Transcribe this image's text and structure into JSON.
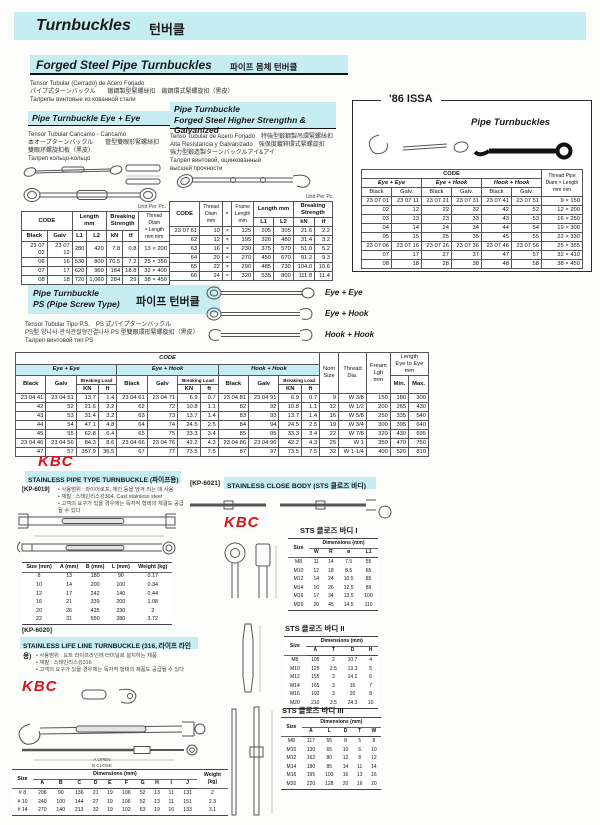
{
  "page": {
    "title_en": "Turnbuckles",
    "title_ko": "턴버클"
  },
  "forged": {
    "title_en": "Forged Steel Pipe Turnbuckles",
    "title_ko": "파이프 몸체 턴버클",
    "desc": [
      "Tensor Tubular (Cerrado) de Acero Forjado",
      "パイプ式ターンバックル　　鍛鋼製型緊螺絲扣　鍛鋼環式緊螺旋扣（黑皮）",
      "Талрепы винтовые из кованной стали"
    ]
  },
  "eye_eye": {
    "title": "Pipe Turnbuckle  Eye + Eye",
    "desc": [
      "Tensor Tubular Cancamo - Cancamo",
      "本オープターンバックル　　管型雙眼形緊螺絲扣",
      "雙眼环螺旋扣板（黑皮）",
      "Талреп кольцо-кольцо"
    ],
    "unit": "Unit Per Pc.",
    "table": {
      "h_code": "CODE",
      "h_black": "Black",
      "h_galv": "Galv",
      "h_length": "Length\nmm",
      "h_l1": "L1",
      "h_l2": "L2",
      "h_break": "Breaking\nStrength",
      "h_kn": "kN",
      "h_tf": "tf",
      "h_thread": "Thread Diam\n× Length\nmm    mm",
      "rows": [
        [
          "23 07 02",
          "23 07 12",
          "280",
          "420",
          "7.8",
          "0.8",
          "13 × 200"
        ],
        [
          "06",
          "16",
          "530",
          "800",
          "70.5",
          "7.2",
          "25 × 350"
        ],
        [
          "07",
          "17",
          "620",
          "960",
          "184",
          "18.8",
          "32 × 400"
        ],
        [
          "08",
          "18",
          "720",
          "1,060",
          "284",
          "29",
          "38 × 450"
        ]
      ]
    }
  },
  "higher": {
    "title1": "Pipe Turnbuckle",
    "title2": "Forged Steel Higher Strengthn & Galvanized",
    "desc": [
      "Tenso Tubular de Acero Forjado　特強型鍛鋼製吊環緊螺絲扣",
      "Alta Resistancia y Galvanizado　強保度鍍鋅環式緊螺旋扣",
      "強力型鍛造製ターンバックルアイ&アイ",
      "Талреп винтовой, оцинкованный",
      "высшей прочности"
    ],
    "unit": "Unit Per Pc.",
    "table": {
      "h_code": "CODE",
      "h_thread": "Thread\nDiam\nmm",
      "h_x": "×",
      "h_frame": "Frame\nLength\nmm",
      "h_length": "Length mm",
      "h_l1": "L1",
      "h_l2": "L2",
      "h_break": "Breaking\nStrength",
      "h_kn": "kN",
      "h_tf": "tf",
      "rows": [
        [
          "23 07 61",
          "10",
          "×",
          "125",
          "205",
          "305",
          "21.6",
          "2.2"
        ],
        [
          "62",
          "12",
          "×",
          "195",
          "320",
          "480",
          "31.4",
          "3.2"
        ],
        [
          "63",
          "16",
          "×",
          "230",
          "375",
          "570",
          "51.0",
          "5.2"
        ],
        [
          "64",
          "20",
          "×",
          "270",
          "450",
          "670",
          "91.2",
          "9.3"
        ],
        [
          "65",
          "22",
          "×",
          "290",
          "485",
          "730",
          "104.0",
          "10.6"
        ],
        [
          "66",
          "24",
          "×",
          "320",
          "535",
          "800",
          "111.8",
          "11.4"
        ]
      ]
    }
  },
  "issa": {
    "label": "'86 ISSA",
    "title": "Pipe Turnbuckles",
    "table": {
      "h_code": "CODE",
      "h_ee": "Eye + Eye",
      "h_eh": "Eye + Hook",
      "h_hh": "Hook + Hook",
      "h_black": "Black",
      "h_galv": "Galv.",
      "h_thread": "Thread    Pipe\nDiam  × Length\nmm       mm",
      "groups": [
        [
          [
            "23 07 01",
            "23 07 11",
            "23 07 21",
            "23 07 31",
            "23 07 41",
            "23 07 51",
            "9  ×  150"
          ],
          [
            "02",
            "12",
            "22",
            "32",
            "42",
            "52",
            "12  ×  200"
          ],
          [
            "03",
            "13",
            "23",
            "33",
            "43",
            "53",
            "16  ×  250"
          ],
          [
            "04",
            "14",
            "24",
            "34",
            "44",
            "54",
            "19  ×  300"
          ],
          [
            "05",
            "15",
            "25",
            "35",
            "45",
            "55",
            "22  ×  330"
          ]
        ],
        [
          [
            "23 07 06",
            "23 07 16",
            "23 07 26",
            "23 07 36",
            "23 07 46",
            "23 07 56",
            "25  ×  355"
          ],
          [
            "07",
            "17",
            "27",
            "37",
            "47",
            "57",
            "32  ×  410"
          ],
          [
            "08",
            "18",
            "28",
            "38",
            "48",
            "58",
            "38  ×  450"
          ]
        ]
      ]
    }
  },
  "ps": {
    "title1": "Pipe Turnbuckle",
    "title2": "PS (Pipe Screw Type)",
    "title_ko": "파이프 턴버클",
    "desc": [
      "Tensor Tubular Tipo P.S.　PS 式パイプターンバックル",
      "PS型·양나사·관식관절형긴결나사  PS 型雙眼環形緊螺旋扣（黑皮）",
      "Талреп винтовой тип PS"
    ],
    "lbl_ee": "Eye + Eye",
    "lbl_eh": "Eye + Hook",
    "lbl_hh": "Hook + Hook"
  },
  "big": {
    "h_code": "CODE",
    "h_ee": "Eye + Eye",
    "h_eh": "Eye + Hook",
    "h_hh": "Hook + Hook",
    "h_black": "Black",
    "h_galv": "Galv",
    "h_bl": "Breaking Load",
    "h_kn": "KN",
    "h_ft": "ft",
    "h_nom": "Nom\nSize",
    "h_thread": "Thread\nDia.",
    "h_fream": "Fream\nLgh\nmm",
    "h_len": "Length\nEye to Eye\nmm",
    "h_min": "Min.",
    "h_max": "Max.",
    "groups": [
      [
        [
          "23 04 41",
          "23 04 51",
          "13.7",
          "1.4",
          "23 04 61",
          "23 04 71",
          "6.9",
          "0.7",
          "23 04 81",
          "23 04 91",
          "6.9",
          "0.7",
          "9",
          "W 3/8",
          "150",
          "180",
          "300"
        ],
        [
          "42",
          "52",
          "21.6",
          "2.2",
          "62",
          "72",
          "10.8",
          "1.1",
          "82",
          "92",
          "10.8",
          "1.1",
          "12",
          "W 1/2",
          "200",
          "265",
          "430"
        ],
        [
          "43",
          "53",
          "31.4",
          "3.2",
          "63",
          "73",
          "13.7",
          "1.4",
          "83",
          "93",
          "13.7",
          "1.4",
          "16",
          "W 5/8",
          "250",
          "335",
          "540"
        ],
        [
          "44",
          "54",
          "47.1",
          "4.8",
          "64",
          "74",
          "24.5",
          "2.5",
          "84",
          "94",
          "24.5",
          "2.5",
          "19",
          "W 3/4",
          "300",
          "395",
          "640"
        ],
        [
          "45",
          "55",
          "62.8",
          "6.4",
          "65",
          "75",
          "33.3",
          "3.4",
          "85",
          "95",
          "33.3",
          "3.4",
          "22",
          "W 7/8",
          "320",
          "430",
          "695"
        ]
      ],
      [
        [
          "23 04 46",
          "23 04 56",
          "84.3",
          "8.6",
          "23 04 66",
          "23 04 76",
          "42.2",
          "4.3",
          "23 04 86",
          "23 04 96",
          "42.2",
          "4.3",
          "25",
          "W 1",
          "350",
          "470",
          "750"
        ],
        [
          "47",
          "57",
          "357.9",
          "36.5",
          "67",
          "77",
          "73.5",
          "7.5",
          "87",
          "97",
          "73.5",
          "7.5",
          "32",
          "W 1-1/4",
          "400",
          "520",
          "810"
        ]
      ]
    ]
  },
  "kbc_logo": "KBC",
  "kp6019": {
    "code": "[KP-6019]",
    "title": "STAINLESS PIPE TYPE TURNBUCKLE (파이프용)",
    "bullets": [
      "• 사용범위 : 와이어로프, 체인 등을 당겨 죄는 데 사용",
      "• 재질 : 스테인리스강304, Cast stainless steel",
      "• 고객의 요구가 있을 경우에는 독자적 형태의 체결도 공급될 수 있다"
    ],
    "table": {
      "cols": [
        "Size (mm)",
        "A (mm)",
        "B (mm)",
        "L (mm)",
        "Weight (kg)"
      ],
      "rows": [
        [
          "8",
          "13",
          "180",
          "90",
          "0.17"
        ],
        [
          "10",
          "14",
          "200",
          "100",
          "0.34"
        ],
        [
          "12",
          "17",
          "242",
          "140",
          "0.44"
        ],
        [
          "16",
          "21",
          "339",
          "200",
          "1.08"
        ],
        [
          "20",
          "26",
          "425",
          "230",
          "2"
        ],
        [
          "22",
          "31",
          "550",
          "280",
          "3.72"
        ]
      ]
    }
  },
  "kp6020": {
    "code": "[KP-6020]",
    "title": "STAINLESS LIFE LINE TURNBUCKLE (316, 라이프 라인용)",
    "bullets": [
      "• 사용범위 : 요트 라이프라인에 터미널로 설치하는 제품",
      "• 재질 : 스테인리스강316",
      "• 고객의 요구가 있을 경우에는 독자적 형태의 제품도 공급될 수 있다"
    ],
    "caption": "A OPEN\nB CLOSE",
    "table": {
      "h_size": "Size",
      "h_dim": "Dimensions (mm)",
      "h_weight": "Weight\n(kg)",
      "cols": [
        "A",
        "B",
        "C",
        "D",
        "E",
        "F",
        "G",
        "H",
        "I",
        "J"
      ],
      "rows": [
        [
          "# 8",
          "206",
          "90",
          "136",
          "21",
          "19",
          "106",
          "52",
          "13",
          "11",
          "131",
          "2"
        ],
        [
          "# 10",
          "240",
          "100",
          "144",
          "27",
          "19",
          "106",
          "52",
          "13",
          "11",
          "151",
          "2.3"
        ],
        [
          "# 14",
          "270",
          "140",
          "213",
          "32",
          "19",
          "102",
          "63",
          "19",
          "16",
          "133",
          "3.1"
        ]
      ]
    }
  },
  "kp6021": {
    "code": "[KP-6021]",
    "title": "STAINLESS CLOSE BODY (STS 클로즈 바디)"
  },
  "sts1": {
    "title": "STS 클로즈 바디 I",
    "h_size": "Size",
    "h_dim": "Dimensions (mm)",
    "cols": [
      "W",
      "R",
      "ø",
      "L1"
    ],
    "rows": [
      [
        "M8",
        "11",
        "14",
        "7.5",
        "55"
      ],
      [
        "M10",
        "12",
        "18",
        "8.5",
        "65"
      ],
      [
        "M12",
        "14",
        "24",
        "10.5",
        "85"
      ],
      [
        "M14",
        "16",
        "26",
        "12.5",
        "89"
      ],
      [
        "M16",
        "17",
        "34",
        "13.5",
        "100"
      ],
      [
        "M20",
        "20",
        "45",
        "14.5",
        "110"
      ]
    ]
  },
  "sts2": {
    "title": "STS 클로즈 바디 II",
    "h_size": "Size",
    "h_dim": "Dimensions (mm)",
    "cols": [
      "A",
      "T",
      "D",
      "H"
    ],
    "rows": [
      [
        "M8",
        "105",
        "2",
        "10.7",
        "4"
      ],
      [
        "M10",
        "125",
        "2.5",
        "13.3",
        "5"
      ],
      [
        "M12",
        "155",
        "3",
        "14.2",
        "6"
      ],
      [
        "M14",
        "165",
        "3",
        "16",
        "7"
      ],
      [
        "M16",
        "192",
        "3",
        "20",
        "8"
      ],
      [
        "M20",
        "210",
        "3.5",
        "24.3",
        "10"
      ]
    ]
  },
  "sts3": {
    "title": "STS 클로즈 바디 III",
    "h_size": "Size",
    "h_dim": "Dimensions (mm)",
    "cols": [
      "A",
      "L",
      "D",
      "T",
      "W"
    ],
    "rows": [
      [
        "M8",
        "117",
        "55",
        "8",
        "5",
        "8"
      ],
      [
        "M10",
        "130",
        "65",
        "10",
        "6",
        "10"
      ],
      [
        "M12",
        "162",
        "80",
        "12",
        "8",
        "12"
      ],
      [
        "M14",
        "180",
        "85",
        "14",
        "11",
        "14"
      ],
      [
        "M16",
        "195",
        "100",
        "16",
        "13",
        "16"
      ],
      [
        "M20",
        "220",
        "128",
        "20",
        "16",
        "20"
      ]
    ]
  }
}
